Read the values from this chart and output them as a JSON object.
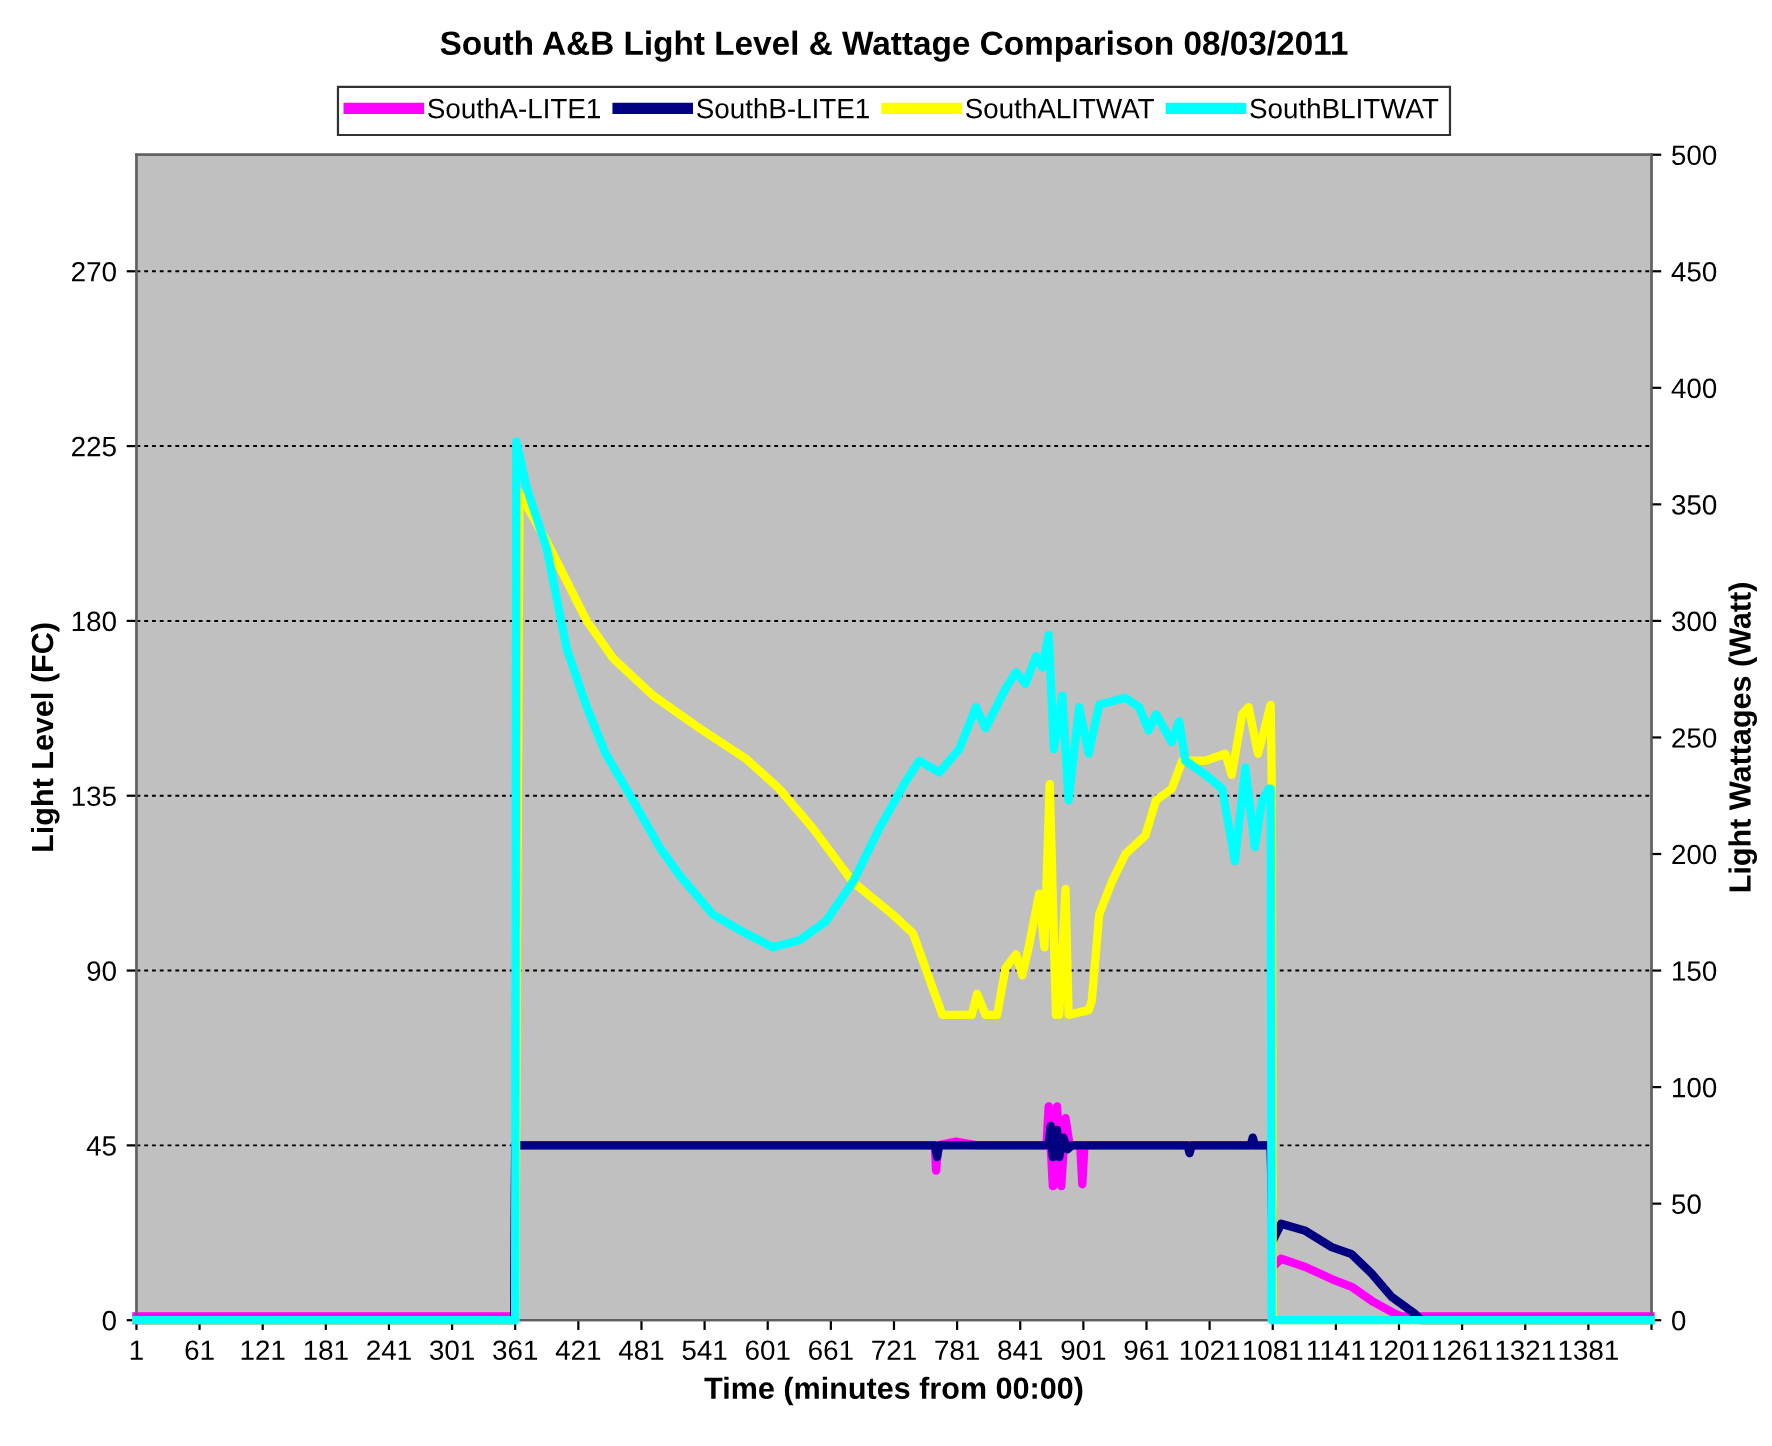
{
  "chart_data": {
    "type": "line",
    "title": "South A&B Light Level & Wattage Comparison 08/03/2011",
    "xlabel": "Time (minutes from 00:00)",
    "ylabel": "Light Level (FC)",
    "y2label": "Light Wattages (Watt)",
    "xlim": [
      1,
      1441
    ],
    "xticks": [
      1,
      61,
      121,
      181,
      241,
      301,
      361,
      421,
      481,
      541,
      601,
      661,
      721,
      781,
      841,
      901,
      961,
      1021,
      1081,
      1141,
      1201,
      1261,
      1321,
      1381,
      {
        "value": 1441,
        "label": null
      }
    ],
    "ylim": [
      0,
      300
    ],
    "yticks": [
      0,
      45,
      90,
      135,
      180,
      225,
      270
    ],
    "y2lim": [
      0,
      500
    ],
    "y2ticks": [
      0,
      50,
      100,
      150,
      200,
      250,
      300,
      350,
      400,
      450,
      500
    ],
    "grid": "y",
    "legend": "top",
    "line_style": "solid",
    "marker": "none",
    "series": [
      {
        "name": "SouthA-LITE1",
        "color": "#ff00ff",
        "axis": "y",
        "x": [
          1,
          360,
          361,
          700,
          760,
          761,
          763,
          780,
          800,
          866,
          868,
          872,
          876,
          880,
          884,
          888,
          898,
          900,
          902,
          1079,
          1081,
          1089,
          1112,
          1137,
          1156,
          1175,
          1197,
          1203,
          1440
        ],
        "values": [
          1,
          1,
          45,
          45,
          45,
          38.5,
          45,
          46,
          45,
          45,
          55,
          34.5,
          55,
          34.5,
          52,
          45,
          45,
          35,
          45,
          45,
          13.7,
          15.8,
          13.7,
          10.6,
          8.6,
          5,
          1.7,
          1,
          1
        ]
      },
      {
        "name": "SouthB-LITE1",
        "color": "#000080",
        "axis": "y",
        "x": [
          1,
          360,
          361,
          760,
          762,
          764,
          868,
          870,
          872,
          876,
          878,
          882,
          886,
          890,
          1000,
          1002,
          1004,
          1060,
          1062,
          1064,
          1079,
          1081,
          1089,
          1112,
          1137,
          1156,
          1175,
          1194,
          1216,
          1222,
          1440
        ],
        "values": [
          0,
          0,
          45,
          45,
          42,
          45,
          45,
          50,
          42,
          49,
          42,
          47,
          44,
          45,
          45,
          43,
          45,
          45,
          47,
          45,
          45,
          20.5,
          24.8,
          23,
          18.8,
          17,
          12,
          6,
          1.7,
          0,
          0
        ]
      },
      {
        "name": "SouthALITWAT",
        "color": "#ffff00",
        "axis": "y2",
        "x": [
          1,
          360,
          361,
          365,
          391,
          429,
          454,
          492,
          536,
          580,
          612,
          644,
          682,
          720,
          739,
          751,
          767,
          795,
          800,
          808,
          819,
          827,
          837,
          843,
          849,
          859,
          864,
          869,
          875,
          878,
          884,
          887,
          906,
          909,
          916,
          928,
          941,
          960,
          970,
          985,
          995,
          1017,
          1036,
          1042,
          1052,
          1058,
          1067,
          1079,
          1080,
          1081,
          1440
        ],
        "values": [
          0,
          0,
          0,
          355,
          334,
          300,
          284,
          268,
          254,
          241,
          228,
          211,
          188,
          174,
          166,
          151,
          131,
          131,
          140,
          131,
          131,
          151,
          157,
          148,
          160,
          183,
          160,
          230,
          131,
          131,
          185,
          131,
          133,
          137,
          174,
          188,
          200,
          208,
          223,
          228,
          240,
          240,
          243,
          234,
          260,
          263,
          243,
          264,
          233,
          0,
          0
        ]
      },
      {
        "name": "SouthBLITWAT",
        "color": "#00ffff",
        "axis": "y2",
        "x": [
          1,
          360,
          361,
          362,
          372,
          391,
          410,
          429,
          447,
          473,
          498,
          517,
          549,
          580,
          606,
          631,
          656,
          682,
          707,
          732,
          745,
          764,
          783,
          799,
          808,
          827,
          837,
          846,
          856,
          862,
          868,
          873,
          881,
          887,
          897,
          906,
          916,
          941,
          954,
          963,
          970,
          985,
          992,
          998,
          1017,
          1033,
          1045,
          1055,
          1064,
          1071,
          1077,
          1079,
          1080,
          1440
        ],
        "values": [
          0,
          0,
          0,
          377,
          357,
          331,
          288,
          263,
          243,
          223,
          203,
          191,
          174,
          166,
          160,
          163,
          171,
          188,
          211,
          231,
          240,
          235,
          245,
          263,
          254,
          271,
          278,
          273,
          285,
          280,
          294,
          245,
          268,
          223,
          263,
          243,
          264,
          267,
          263,
          253,
          260,
          248,
          257,
          240,
          234,
          228,
          197,
          237,
          203,
          223,
          228,
          228,
          0,
          0
        ]
      }
    ]
  }
}
